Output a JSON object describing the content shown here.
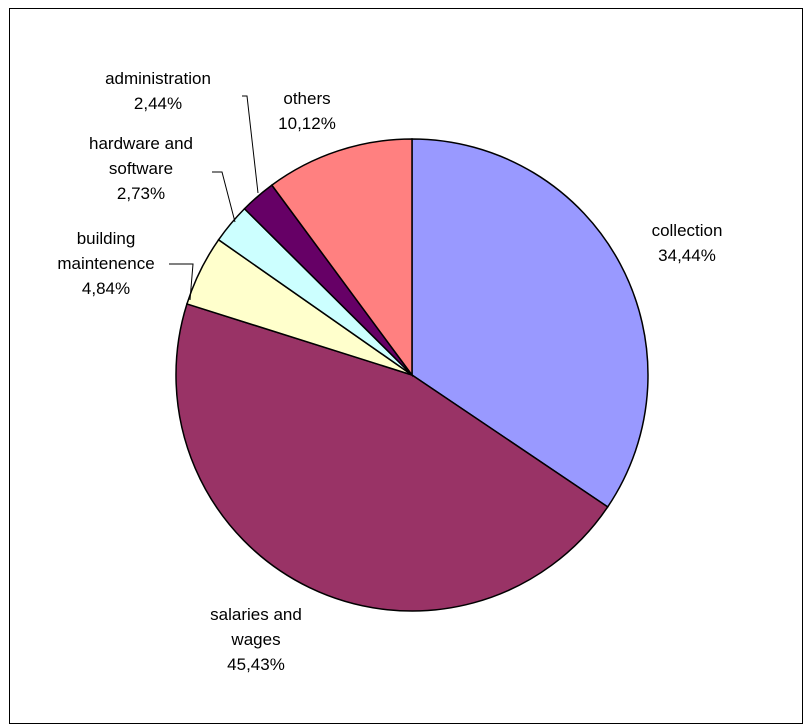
{
  "chart_data": {
    "type": "pie",
    "start_angle_deg": 0,
    "direction": "clockwise",
    "slices": [
      {
        "label_lines": [
          "collection",
          "34,44%"
        ],
        "value": 34.44,
        "color": "#9999FF"
      },
      {
        "label_lines": [
          "salaries and",
          "wages",
          "45,43%"
        ],
        "value": 45.43,
        "color": "#993366"
      },
      {
        "label_lines": [
          "building",
          "maintenence",
          "4,84%"
        ],
        "value": 4.84,
        "color": "#FFFFCC"
      },
      {
        "label_lines": [
          "hardware and",
          "software",
          "2,73%"
        ],
        "value": 2.73,
        "color": "#CCFFFF"
      },
      {
        "label_lines": [
          "administration",
          "2,44%"
        ],
        "value": 2.44,
        "color": "#660066"
      },
      {
        "label_lines": [
          "others",
          "10,12%"
        ],
        "value": 10.12,
        "color": "#FF8080"
      }
    ]
  }
}
